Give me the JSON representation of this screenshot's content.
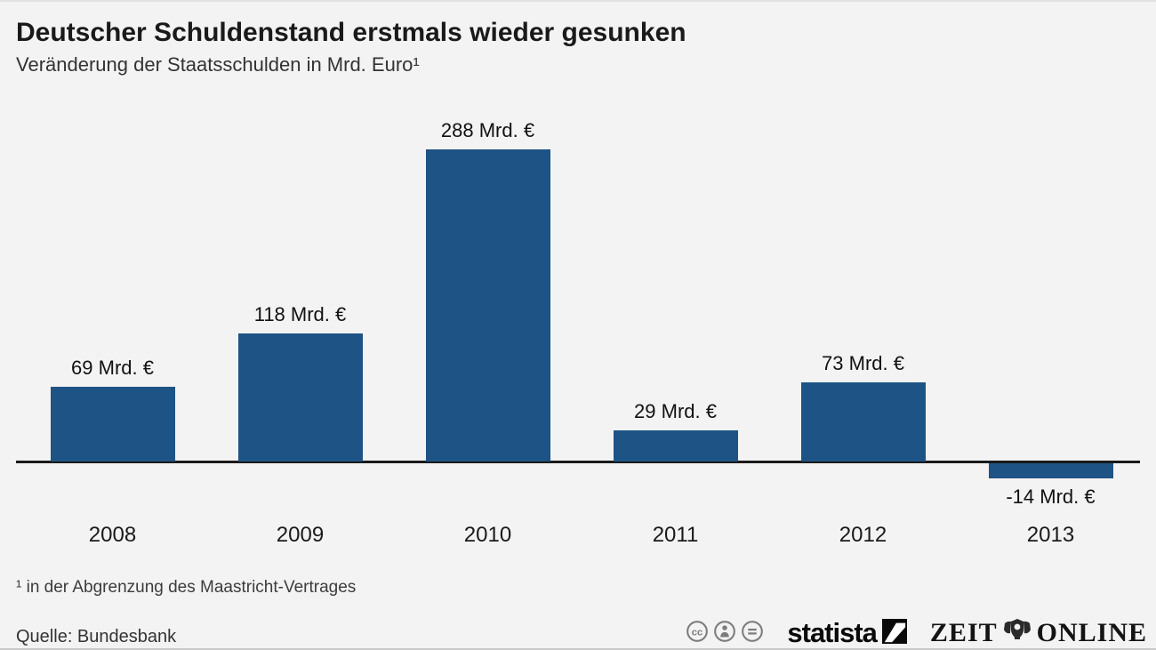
{
  "page": {
    "background": "#f3f3f3"
  },
  "header": {
    "title": "Deutscher Schuldenstand erstmals wieder gesunken",
    "subtitle": "Veränderung der Staatsschulden in Mrd. Euro¹"
  },
  "chart_data": {
    "type": "bar",
    "categories": [
      "2008",
      "2009",
      "2010",
      "2011",
      "2012",
      "2013"
    ],
    "values": [
      69,
      118,
      288,
      29,
      73,
      -14
    ],
    "value_labels": [
      "69 Mrd. €",
      "118 Mrd. €",
      "288 Mrd. €",
      "29 Mrd. €",
      "73 Mrd. €",
      "-14 Mrd. €"
    ],
    "unit": "Mrd. €",
    "title": "Deutscher Schuldenstand erstmals wieder gesunken",
    "subtitle": "Veränderung der Staatsschulden in Mrd. Euro¹",
    "xlabel": "",
    "ylabel": "",
    "ylim": [
      -40,
      320
    ],
    "grid": false,
    "legend": null,
    "bar_color": "#1e5385",
    "axis_color": "#1a1a1a",
    "baseline_value": 0
  },
  "footnote": "¹ in der Abgrenzung des Maastricht-Vertrages",
  "source": "Quelle: Bundesbank",
  "footer": {
    "cc_icons": [
      "cc-license-icon",
      "cc-by-icon",
      "cc-nd-icon"
    ],
    "statista_label": "statista",
    "zeit_label_1": "ZEIT",
    "zeit_label_2": "ONLINE"
  }
}
